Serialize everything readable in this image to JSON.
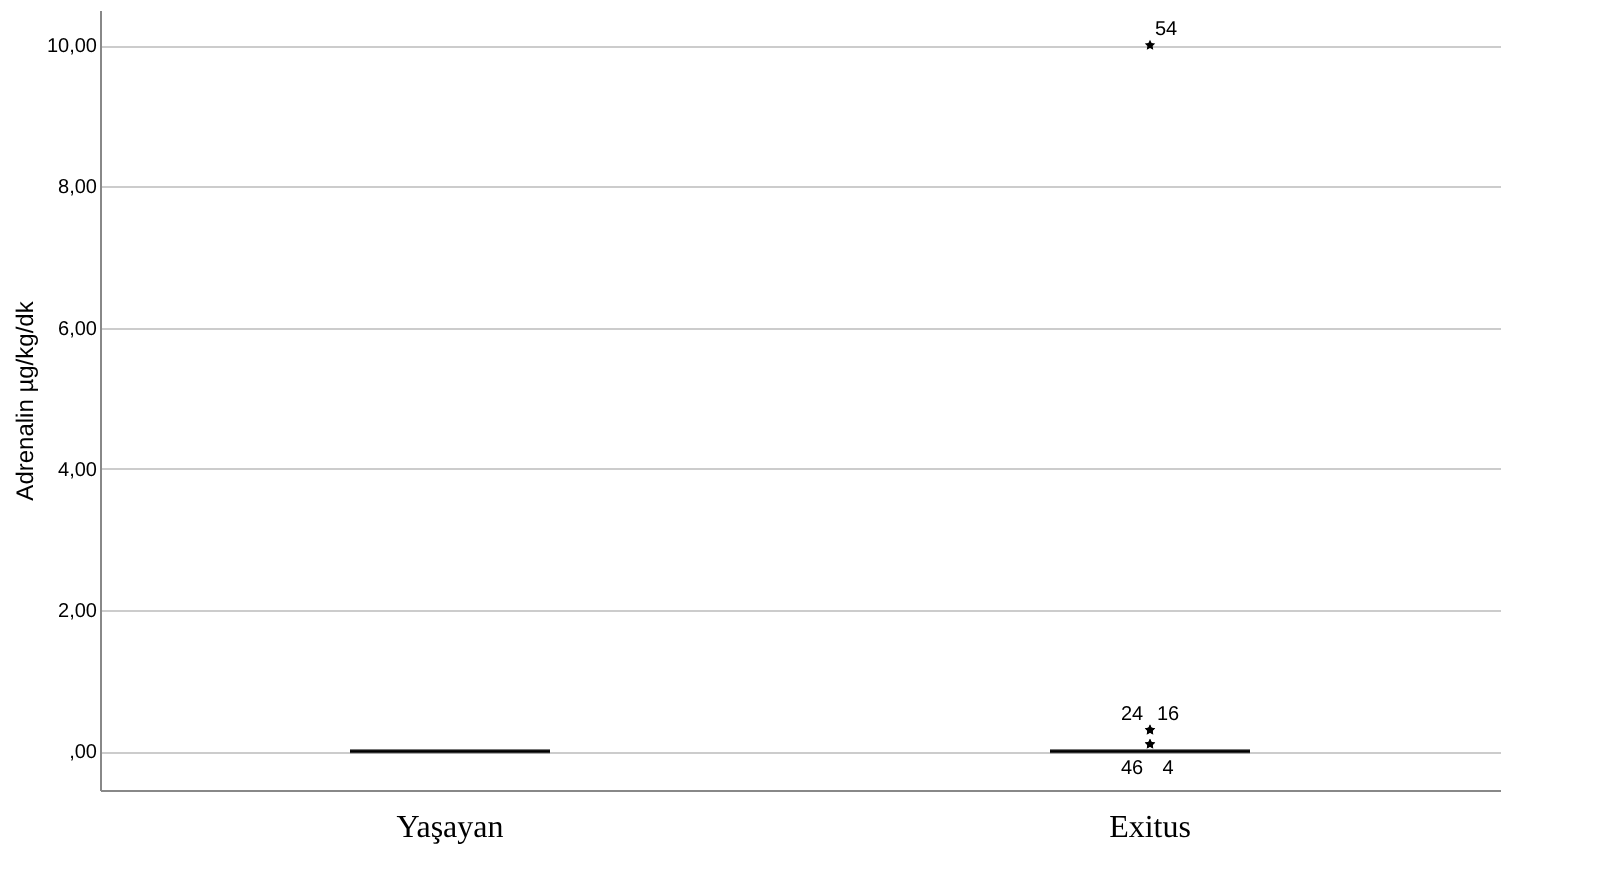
{
  "chart_data": {
    "type": "box",
    "ylabel": "Adrenalin µg/kg/dk",
    "categories": [
      "Yaşayan",
      "Exitus"
    ],
    "boxes": [
      {
        "low": 0,
        "q1": 0,
        "median": 0,
        "q3": 0,
        "high": 0
      },
      {
        "low": 0,
        "q1": 0,
        "median": 0,
        "q3": 0,
        "high": 0,
        "outliers": [
          0.1,
          0.1,
          0.3,
          0.3,
          10
        ]
      }
    ],
    "ylim": [
      -0.55,
      10.5
    ],
    "yticks": [
      {
        "value": 0,
        "label": ",00"
      },
      {
        "value": 2,
        "label": "2,00"
      },
      {
        "value": 4,
        "label": "4,00"
      },
      {
        "value": 6,
        "label": "6,00"
      },
      {
        "value": 8,
        "label": "8,00"
      },
      {
        "value": 10,
        "label": "10,00"
      }
    ],
    "grid": "y",
    "marker": "star",
    "annotations": [
      "54",
      "24",
      "16",
      "46",
      "4"
    ]
  }
}
